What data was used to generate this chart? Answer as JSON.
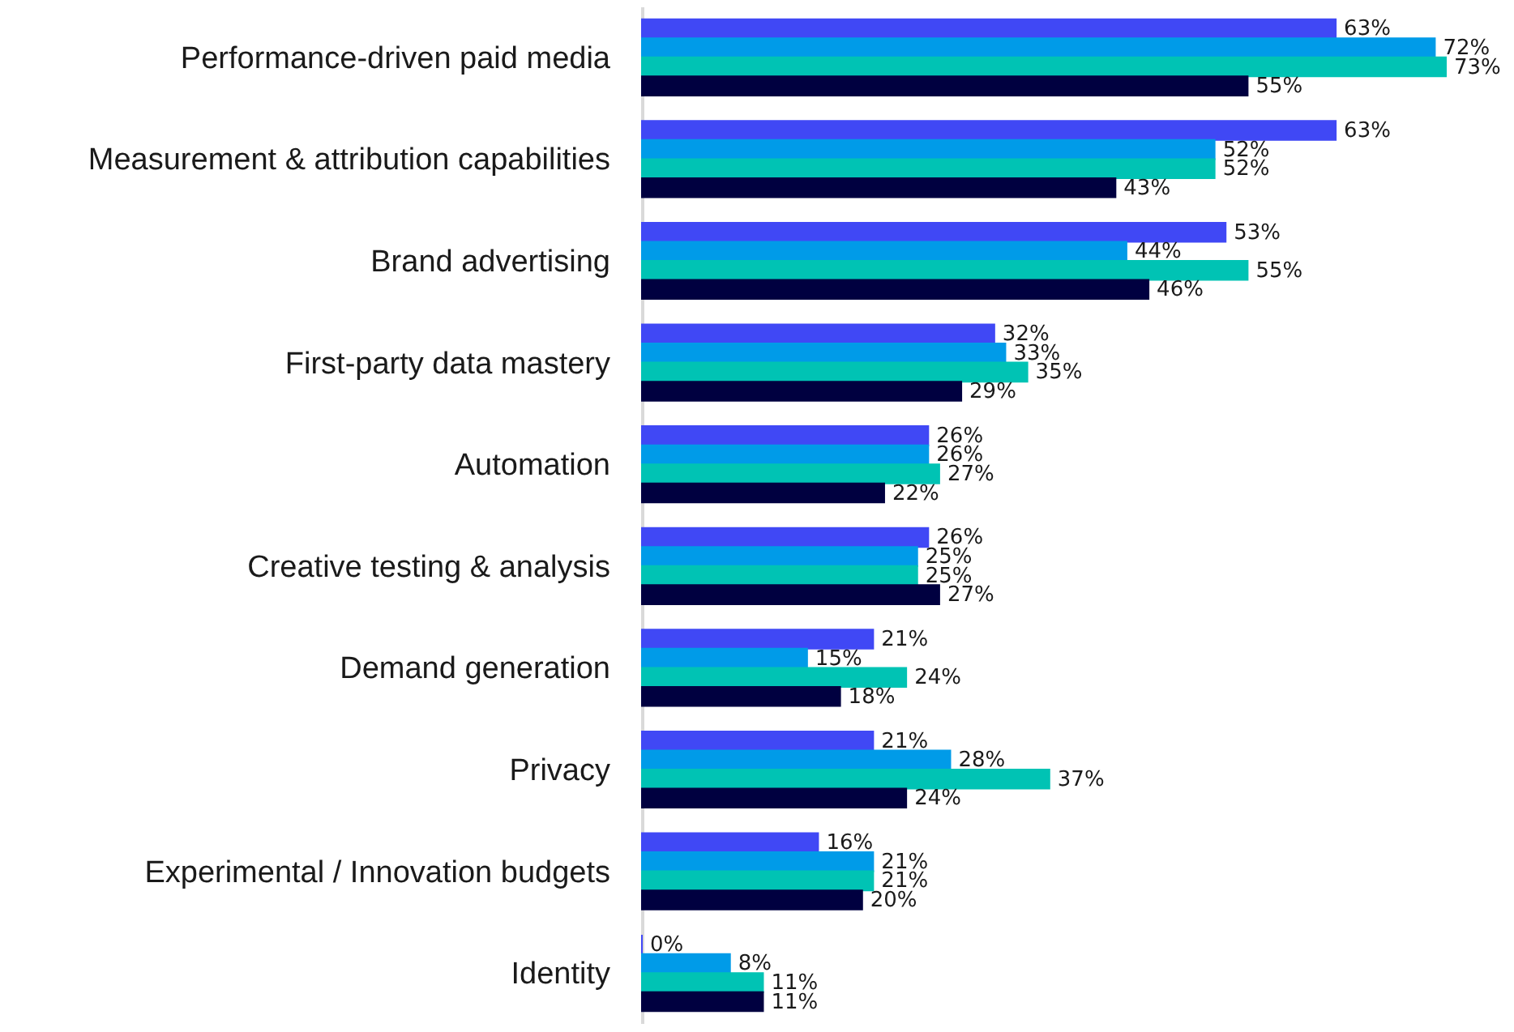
{
  "chart_data": {
    "type": "bar",
    "orientation": "horizontal",
    "categories": [
      "Performance-driven paid media",
      "Measurement & attribution capabilities",
      "Brand advertising",
      "First-party data mastery",
      "Automation",
      "Creative testing & analysis",
      "Demand generation",
      "Privacy",
      "Experimental / Innovation budgets",
      "Identity"
    ],
    "series": [
      {
        "color": "#4048f5",
        "values": [
          63,
          63,
          53,
          32,
          26,
          26,
          21,
          21,
          16,
          0
        ],
        "value_labels": [
          "63%",
          "63%",
          "53%",
          "32%",
          "26%",
          "26%",
          "21%",
          "21%",
          "16%",
          "0%"
        ]
      },
      {
        "color": "#009be8",
        "values": [
          72,
          52,
          44,
          33,
          26,
          25,
          15,
          28,
          21,
          8
        ],
        "value_labels": [
          "72%",
          "52%",
          "44%",
          "33%",
          "26%",
          "25%",
          "15%",
          "28%",
          "21%",
          "8%"
        ]
      },
      {
        "color": "#00c3b4",
        "values": [
          73,
          52,
          55,
          35,
          27,
          25,
          24,
          37,
          21,
          11
        ],
        "value_labels": [
          "73%",
          "52%",
          "55%",
          "35%",
          "27%",
          "25%",
          "24%",
          "37%",
          "21%",
          "11%"
        ]
      },
      {
        "color": "#000040",
        "values": [
          55,
          43,
          46,
          29,
          22,
          27,
          18,
          24,
          20,
          11
        ],
        "value_labels": [
          "55%",
          "43%",
          "46%",
          "29%",
          "22%",
          "27%",
          "18%",
          "24%",
          "20%",
          "11%"
        ]
      }
    ]
  }
}
